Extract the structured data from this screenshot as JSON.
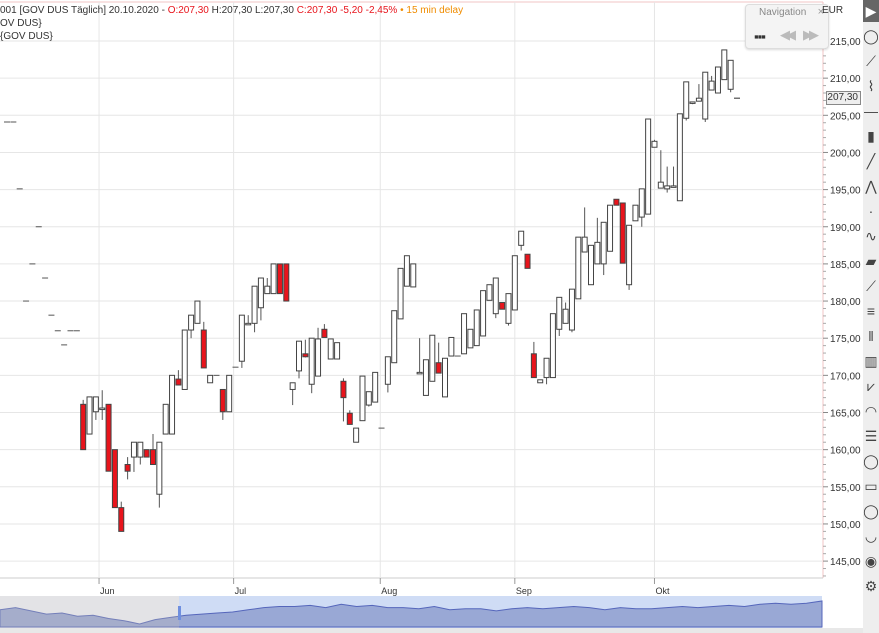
{
  "legend": {
    "line1_prefix": "001 [GOV DUS Täglich] 20.10.2020 - ",
    "open": "O:207,30",
    "high_low": " H:207,30 L:207,30 ",
    "close_change": "C:207,30 -5,20 -2,45%",
    "delay": " • 15 min delay",
    "line2": "OV DUS}",
    "line3": "{GOV DUS}"
  },
  "navigation": {
    "title": "Navigation",
    "close": "×",
    "grid_icon": "grid-icon",
    "prev_icon": "rewind-icon",
    "next_icon": "fast-forward-icon"
  },
  "currency": "EUR",
  "last_price_tag": "207,30",
  "toolbar_icons": [
    "cursor",
    "circle",
    "line",
    "polyline",
    "horizontal-line",
    "bars",
    "trend-line",
    "pitchfork",
    "dot",
    "path",
    "fill",
    "ray",
    "parallel-lines",
    "vertical-lines",
    "fib-lines",
    "fan",
    "arcs",
    "fib-retracement",
    "ellipse",
    "rectangle",
    "circle-tool",
    "arc",
    "eye",
    "settings"
  ],
  "colors": {
    "up": "#ffffff",
    "down": "#e8141c",
    "outline": "#444444",
    "grid": "#e6e6e6",
    "navigator_fill": "#8f9fcf",
    "navigator_window": "#cfdcf5"
  },
  "chart_data": {
    "type": "candlestick",
    "ylim": [
      143,
      217
    ],
    "y_ticks": [
      "145,00",
      "150,00",
      "155,00",
      "160,00",
      "165,00",
      "170,00",
      "175,00",
      "180,00",
      "185,00",
      "190,00",
      "195,00",
      "200,00",
      "205,00",
      "210,00",
      "215,00"
    ],
    "x_ticks": [
      "Jun",
      "Jul",
      "Aug",
      "Sep",
      "Okt"
    ],
    "grid": true,
    "ohlc": [
      [
        204.1,
        204.1,
        204.1,
        204.1
      ],
      [
        204.1,
        204.1,
        204.1,
        204.1
      ],
      [
        195.1,
        195.1,
        195.1,
        195.1
      ],
      [
        180,
        180,
        180,
        180
      ],
      [
        185,
        185,
        185,
        185
      ],
      [
        190,
        190,
        190,
        190
      ],
      [
        183.1,
        183.1,
        183.1,
        183.1
      ],
      [
        178.1,
        178.1,
        178.1,
        178.1
      ],
      [
        176,
        176,
        176,
        176
      ],
      [
        174.1,
        174.1,
        174.1,
        174.1
      ],
      [
        176,
        176,
        176,
        176
      ],
      [
        176,
        176,
        176,
        176
      ],
      [
        166.1,
        166.7,
        160,
        160
      ],
      [
        162.1,
        167.1,
        162.1,
        167.1
      ],
      [
        165.1,
        167.1,
        164,
        167.1
      ],
      [
        165.5,
        168,
        164,
        165.6
      ],
      [
        166.1,
        166.1,
        157.1,
        157.1
      ],
      [
        160,
        160,
        152.2,
        152.2
      ],
      [
        152.2,
        153,
        149,
        149
      ],
      [
        158,
        159,
        156,
        157.1
      ],
      [
        159,
        161,
        157,
        161
      ],
      [
        159,
        161,
        158,
        161
      ],
      [
        160,
        160,
        159,
        159
      ],
      [
        160,
        162.1,
        158,
        158
      ],
      [
        154,
        161,
        152.2,
        161
      ],
      [
        162.1,
        166.1,
        162.1,
        166.1
      ],
      [
        162.1,
        170,
        162.1,
        170
      ],
      [
        169.5,
        170.7,
        168.7,
        168.7
      ],
      [
        168.1,
        176.1,
        168.1,
        176.1
      ],
      [
        176.1,
        178.1,
        175,
        178.1
      ],
      [
        177,
        180,
        177,
        180
      ],
      [
        176.1,
        177.2,
        171,
        171
      ],
      [
        169,
        170,
        169,
        170
      ],
      [
        170,
        170,
        170,
        170
      ],
      [
        168.1,
        168.1,
        164,
        165.1
      ],
      [
        165.1,
        170,
        165.1,
        170
      ],
      [
        171.1,
        171.1,
        171.1,
        171.1
      ],
      [
        171.9,
        178.1,
        171,
        178.1
      ],
      [
        177,
        178.1,
        177,
        177
      ],
      [
        177,
        182,
        175.8,
        182
      ],
      [
        179.1,
        183.1,
        177.4,
        183.1
      ],
      [
        181,
        183.1,
        181,
        182
      ],
      [
        181,
        185,
        181,
        185
      ],
      [
        185,
        185,
        181,
        181
      ],
      [
        185,
        185,
        180,
        180
      ],
      [
        168.1,
        169,
        166,
        169
      ],
      [
        170.6,
        174.6,
        169.6,
        174.6
      ],
      [
        172.9,
        174.8,
        172.4,
        172.5
      ],
      [
        168.8,
        175,
        167.6,
        175
      ],
      [
        169.9,
        176.4,
        169.9,
        174.9
      ],
      [
        176.2,
        176.9,
        175.1,
        175.1
      ],
      [
        172.2,
        174.9,
        172.2,
        174.9
      ],
      [
        172.2,
        174.4,
        172.2,
        174.4
      ],
      [
        169.2,
        169.6,
        163.8,
        167
      ],
      [
        164.9,
        165.3,
        163.4,
        163.4
      ],
      [
        161,
        162.9,
        161,
        162.9
      ],
      [
        163.9,
        169.9,
        163.9,
        169.9
      ],
      [
        166,
        167.8,
        165.8,
        167.8
      ],
      [
        166.4,
        170.4,
        166.4,
        170.4
      ],
      [
        162.9,
        162.9,
        162.9,
        162.9
      ],
      [
        168.8,
        172.5,
        167.7,
        172.5
      ],
      [
        171.7,
        178.7,
        171.7,
        178.7
      ],
      [
        177.6,
        184.4,
        177.6,
        184.4
      ],
      [
        182,
        186.1,
        182,
        186.1
      ],
      [
        181.9,
        185,
        181.9,
        185
      ],
      [
        170.4,
        175,
        170.4,
        170.4
      ],
      [
        167.3,
        172.1,
        167.3,
        172.1
      ],
      [
        169.2,
        175.4,
        169.2,
        175.4
      ],
      [
        171.7,
        174.4,
        170.3,
        170.3
      ],
      [
        167.1,
        172.3,
        167.1,
        172.3
      ],
      [
        172.6,
        175.1,
        172.6,
        175.1
      ],
      [
        172.6,
        172.6,
        172.6,
        172.6
      ],
      [
        172.9,
        178.3,
        172.9,
        178.3
      ],
      [
        173.7,
        176.2,
        173.7,
        176.2
      ],
      [
        174,
        178.8,
        174,
        178.8
      ],
      [
        175.3,
        181.4,
        175.3,
        181.4
      ],
      [
        180.1,
        182.2,
        180.1,
        182.2
      ],
      [
        178.3,
        183.1,
        177.7,
        183.1
      ],
      [
        179.8,
        179.8,
        178.9,
        178.9
      ],
      [
        177,
        181,
        176.7,
        181
      ],
      [
        178.8,
        186.1,
        178.8,
        186.1
      ],
      [
        187.5,
        189.4,
        186.8,
        189.4
      ],
      [
        186.3,
        186.3,
        184.4,
        184.4
      ],
      [
        172.9,
        174.5,
        169.7,
        169.7
      ],
      [
        169,
        169.4,
        169,
        169.4
      ],
      [
        169.7,
        172.3,
        168.8,
        172.3
      ],
      [
        169.7,
        178.3,
        169.7,
        178.3
      ],
      [
        176.2,
        180.5,
        175.3,
        180.5
      ],
      [
        177,
        179.8,
        177,
        178.9
      ],
      [
        176.1,
        181.6,
        175.8,
        181.6
      ],
      [
        180.3,
        188.6,
        180.3,
        188.6
      ],
      [
        186.6,
        192.6,
        186.6,
        188.6
      ],
      [
        182.2,
        187.5,
        182.2,
        187.5
      ],
      [
        185,
        191.2,
        185,
        187.9
      ],
      [
        185,
        190.6,
        183.5,
        190.6
      ],
      [
        186.7,
        192.9,
        186.7,
        192.9
      ],
      [
        193.7,
        193.7,
        192.9,
        192.9
      ],
      [
        193.2,
        193.2,
        185.1,
        185.1
      ],
      [
        182.2,
        190.2,
        181.5,
        190.2
      ],
      [
        190.8,
        192.9,
        190.8,
        192.9
      ],
      [
        191.3,
        195.1,
        190,
        195.1
      ],
      [
        191.7,
        204.5,
        191.7,
        204.5
      ],
      [
        200.7,
        201.7,
        200.7,
        201.5
      ],
      [
        195.2,
        200.3,
        195.2,
        196
      ],
      [
        195.1,
        198.1,
        194.6,
        195.5
      ],
      [
        195.5,
        198.1,
        195.5,
        195.5
      ],
      [
        193.5,
        205.2,
        193.5,
        205.2
      ],
      [
        204.6,
        209.5,
        204.3,
        209.5
      ],
      [
        206.8,
        206.8,
        206.5,
        206.8
      ],
      [
        206.9,
        209.2,
        206.9,
        207.3
      ],
      [
        204.5,
        210.8,
        204.1,
        210.8
      ],
      [
        208.4,
        210.3,
        208.4,
        209.6
      ],
      [
        208,
        211.5,
        208,
        211.5
      ],
      [
        209.8,
        213.8,
        209.8,
        213.8
      ],
      [
        208.5,
        212.4,
        208.1,
        212.4
      ],
      [
        207.3,
        207.3,
        207.3,
        207.3
      ]
    ],
    "navigator_series": [
      180,
      182,
      179,
      176,
      177,
      174,
      175,
      172,
      170,
      167,
      171,
      173,
      175,
      176,
      177,
      178,
      180,
      182,
      183,
      183,
      184,
      182,
      185,
      183,
      184,
      182,
      182,
      181,
      183,
      180,
      181,
      181,
      179,
      181,
      182,
      181,
      182,
      183,
      182,
      180,
      182,
      181,
      181,
      182,
      183,
      182,
      183,
      184,
      183,
      185,
      186,
      185,
      186,
      188
    ]
  }
}
